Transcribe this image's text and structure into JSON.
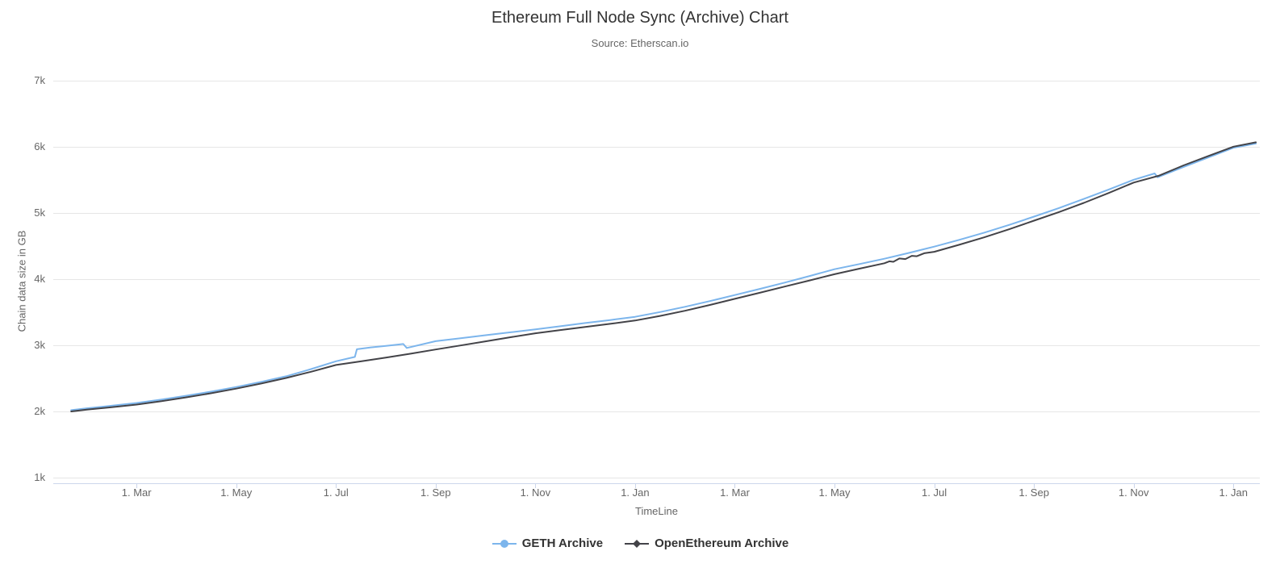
{
  "chart_data": {
    "type": "line",
    "title": "Ethereum Full Node Sync (Archive) Chart",
    "subtitle": "Source: Etherscan.io",
    "xlabel": "TimeLine",
    "ylabel": "Chain data size in GB",
    "y_unit": "GB",
    "ylim": [
      930,
      7000
    ],
    "x_axis_note": "x values are months elapsed since Jan 1 of the first year shown (2-month tick spacing)",
    "x_range_months": [
      0.33,
      24.53
    ],
    "grid": "horizontal",
    "legend_position": "bottom-center",
    "y_ticks": [
      {
        "value": 1000,
        "label": "1k"
      },
      {
        "value": 2000,
        "label": "2k"
      },
      {
        "value": 3000,
        "label": "3k"
      },
      {
        "value": 4000,
        "label": "4k"
      },
      {
        "value": 5000,
        "label": "5k"
      },
      {
        "value": 6000,
        "label": "6k"
      },
      {
        "value": 7000,
        "label": "7k"
      }
    ],
    "x_ticks": [
      {
        "m": 2,
        "label": "1. Mar"
      },
      {
        "m": 4,
        "label": "1. May"
      },
      {
        "m": 6,
        "label": "1. Jul"
      },
      {
        "m": 8,
        "label": "1. Sep"
      },
      {
        "m": 10,
        "label": "1. Nov"
      },
      {
        "m": 12,
        "label": "1. Jan"
      },
      {
        "m": 14,
        "label": "1. Mar"
      },
      {
        "m": 16,
        "label": "1. May"
      },
      {
        "m": 18,
        "label": "1. Jul"
      },
      {
        "m": 20,
        "label": "1. Sep"
      },
      {
        "m": 22,
        "label": "1. Nov"
      },
      {
        "m": 24,
        "label": "1. Jan"
      }
    ],
    "series": [
      {
        "name": "GETH Archive",
        "color": "#7cb5ec",
        "marker": "circle",
        "points": [
          [
            0.69,
            2020
          ],
          [
            1,
            2048
          ],
          [
            1.5,
            2086
          ],
          [
            2,
            2128
          ],
          [
            2.5,
            2180
          ],
          [
            3,
            2238
          ],
          [
            3.5,
            2300
          ],
          [
            4,
            2370
          ],
          [
            4.5,
            2448
          ],
          [
            5,
            2532
          ],
          [
            5.5,
            2640
          ],
          [
            6,
            2758
          ],
          [
            6.38,
            2825
          ],
          [
            6.42,
            2940
          ],
          [
            6.7,
            2968
          ],
          [
            7,
            2990
          ],
          [
            7.35,
            3020
          ],
          [
            7.42,
            2960
          ],
          [
            8,
            3062
          ],
          [
            8.5,
            3106
          ],
          [
            9,
            3152
          ],
          [
            9.5,
            3196
          ],
          [
            10,
            3242
          ],
          [
            10.5,
            3288
          ],
          [
            11,
            3336
          ],
          [
            11.5,
            3382
          ],
          [
            12,
            3430
          ],
          [
            12.5,
            3502
          ],
          [
            13,
            3582
          ],
          [
            13.5,
            3668
          ],
          [
            14,
            3760
          ],
          [
            14.5,
            3852
          ],
          [
            15,
            3948
          ],
          [
            15.5,
            4048
          ],
          [
            16,
            4150
          ],
          [
            16.5,
            4228
          ],
          [
            17,
            4308
          ],
          [
            17.5,
            4398
          ],
          [
            18,
            4492
          ],
          [
            18.5,
            4594
          ],
          [
            19,
            4702
          ],
          [
            19.5,
            4820
          ],
          [
            20,
            4945
          ],
          [
            20.5,
            5075
          ],
          [
            21,
            5212
          ],
          [
            21.5,
            5355
          ],
          [
            22,
            5502
          ],
          [
            22.42,
            5598
          ],
          [
            22.48,
            5540
          ],
          [
            23,
            5695
          ],
          [
            23.5,
            5840
          ],
          [
            24,
            5985
          ],
          [
            24.45,
            6050
          ]
        ]
      },
      {
        "name": "OpenEthereum Archive",
        "color": "#434348",
        "marker": "diamond",
        "points": [
          [
            0.69,
            2000
          ],
          [
            1,
            2028
          ],
          [
            1.5,
            2063
          ],
          [
            2,
            2104
          ],
          [
            2.5,
            2156
          ],
          [
            3,
            2214
          ],
          [
            3.5,
            2276
          ],
          [
            4,
            2345
          ],
          [
            4.5,
            2422
          ],
          [
            5,
            2506
          ],
          [
            5.5,
            2600
          ],
          [
            6,
            2702
          ],
          [
            6.5,
            2757
          ],
          [
            7,
            2814
          ],
          [
            7.5,
            2873
          ],
          [
            8,
            2936
          ],
          [
            8.5,
            2997
          ],
          [
            9,
            3060
          ],
          [
            9.5,
            3122
          ],
          [
            10,
            3182
          ],
          [
            10.5,
            3230
          ],
          [
            11,
            3278
          ],
          [
            11.5,
            3325
          ],
          [
            12,
            3374
          ],
          [
            12.5,
            3444
          ],
          [
            13,
            3522
          ],
          [
            13.5,
            3610
          ],
          [
            14,
            3702
          ],
          [
            14.5,
            3794
          ],
          [
            15,
            3888
          ],
          [
            15.5,
            3980
          ],
          [
            16,
            4075
          ],
          [
            16.5,
            4158
          ],
          [
            17,
            4240
          ],
          [
            17.1,
            4270
          ],
          [
            17.18,
            4262
          ],
          [
            17.3,
            4312
          ],
          [
            17.42,
            4304
          ],
          [
            17.55,
            4352
          ],
          [
            17.65,
            4346
          ],
          [
            17.8,
            4392
          ],
          [
            18,
            4414
          ],
          [
            18.5,
            4520
          ],
          [
            19,
            4632
          ],
          [
            19.5,
            4754
          ],
          [
            20,
            4884
          ],
          [
            20.5,
            5014
          ],
          [
            21,
            5152
          ],
          [
            21.5,
            5302
          ],
          [
            22,
            5460
          ],
          [
            22.5,
            5562
          ],
          [
            23,
            5720
          ],
          [
            23.5,
            5862
          ],
          [
            24,
            6002
          ],
          [
            24.45,
            6068
          ]
        ]
      }
    ],
    "colors": {
      "grid_line": "#e6e6e6",
      "axis_line": "#ccd6eb",
      "title_text": "#333333",
      "muted_text": "#666666",
      "legend_text": "#333333"
    }
  }
}
